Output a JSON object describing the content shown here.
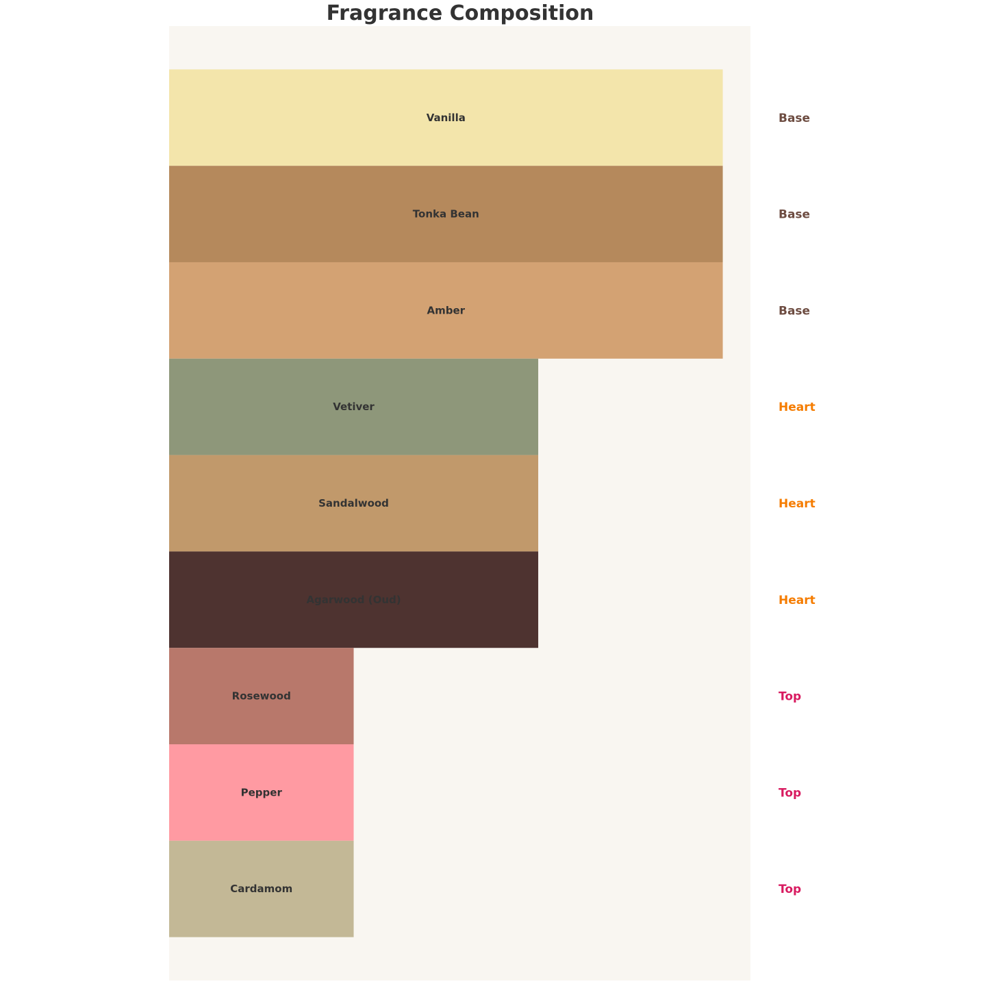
{
  "chart_data": {
    "type": "bar",
    "orientation": "horizontal",
    "title": "Fragrance Composition",
    "xlabel": "",
    "ylabel": "",
    "xlim": [
      0,
      3.15
    ],
    "grid": false,
    "axes_visible": false,
    "background": "#F9F6F1",
    "categories": [
      "Vanilla",
      "Tonka Bean",
      "Amber",
      "Vetiver",
      "Sandalwood",
      "Agarwood (Oud)",
      "Rosewood",
      "Pepper",
      "Cardamom"
    ],
    "values": [
      3,
      3,
      3,
      2,
      2,
      2,
      1,
      1,
      1
    ],
    "groups": [
      "Base",
      "Base",
      "Base",
      "Heart",
      "Heart",
      "Heart",
      "Top",
      "Top",
      "Top"
    ],
    "bar_colors": [
      "#F3E5AB",
      "#B5895C",
      "#D3A273",
      "#8E977A",
      "#C1996B",
      "#4E3330",
      "#B8786B",
      "#FF9AA2",
      "#C3B896"
    ],
    "group_colors": {
      "Base": "#6D4C41",
      "Heart": "#F57C00",
      "Top": "#D81B60"
    },
    "label_color": "#333333"
  }
}
